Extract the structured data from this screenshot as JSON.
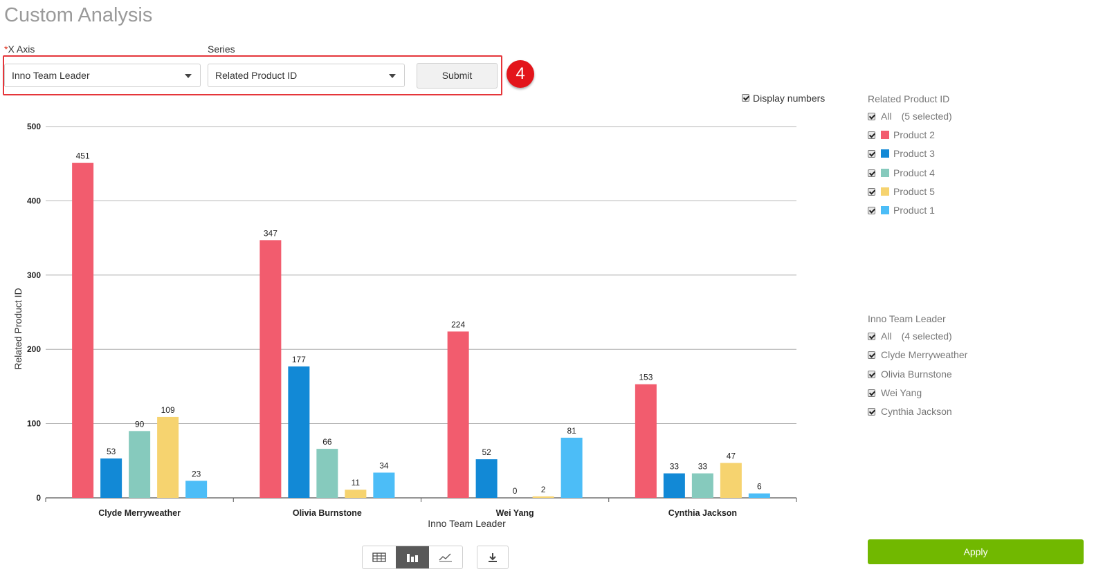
{
  "page": {
    "title": "Custom Analysis"
  },
  "controls": {
    "x_axis_required_mark": "*",
    "x_axis_label": "X Axis",
    "x_axis_value": "Inno Team Leader",
    "series_label": "Series",
    "series_value": "Related Product ID",
    "submit_label": "Submit",
    "step_badge": "4"
  },
  "display_numbers": {
    "label": "Display numbers",
    "checked": true
  },
  "filters": {
    "product": {
      "title": "Related Product ID",
      "all_label": "All",
      "selected_text": "(5 selected)",
      "items": [
        {
          "label": "Product 2",
          "color": "#f25c6e"
        },
        {
          "label": "Product 3",
          "color": "#1289d6"
        },
        {
          "label": "Product 4",
          "color": "#86cabd"
        },
        {
          "label": "Product 5",
          "color": "#f6d36f"
        },
        {
          "label": "Product 1",
          "color": "#4cbdf7"
        }
      ]
    },
    "leader": {
      "title": "Inno Team Leader",
      "all_label": "All",
      "selected_text": "(4 selected)",
      "items": [
        {
          "label": "Clyde Merryweather"
        },
        {
          "label": "Olivia Burnstone"
        },
        {
          "label": "Wei Yang"
        },
        {
          "label": "Cynthia Jackson"
        }
      ]
    }
  },
  "apply_label": "Apply",
  "view_toggle": {
    "active": "bar",
    "options": [
      "table-icon",
      "bar-chart-icon",
      "line-chart-icon"
    ]
  },
  "chart_data": {
    "type": "bar",
    "categories": [
      "Clyde Merryweather",
      "Olivia Burnstone",
      "Wei Yang",
      "Cynthia Jackson"
    ],
    "series": [
      {
        "name": "Product 2",
        "color": "#f25c6e",
        "values": [
          451,
          347,
          224,
          153
        ]
      },
      {
        "name": "Product 3",
        "color": "#1289d6",
        "values": [
          53,
          177,
          52,
          33
        ]
      },
      {
        "name": "Product 4",
        "color": "#86cabd",
        "values": [
          90,
          66,
          0,
          33
        ]
      },
      {
        "name": "Product 5",
        "color": "#f6d36f",
        "values": [
          109,
          11,
          2,
          47
        ]
      },
      {
        "name": "Product 1",
        "color": "#4cbdf7",
        "values": [
          23,
          34,
          81,
          6
        ]
      }
    ],
    "xlabel": "Inno Team Leader",
    "ylabel": "Related Product ID",
    "ylim": [
      0,
      500
    ],
    "yticks": [
      0,
      100,
      200,
      300,
      400,
      500
    ],
    "show_values": true,
    "grid": true
  }
}
